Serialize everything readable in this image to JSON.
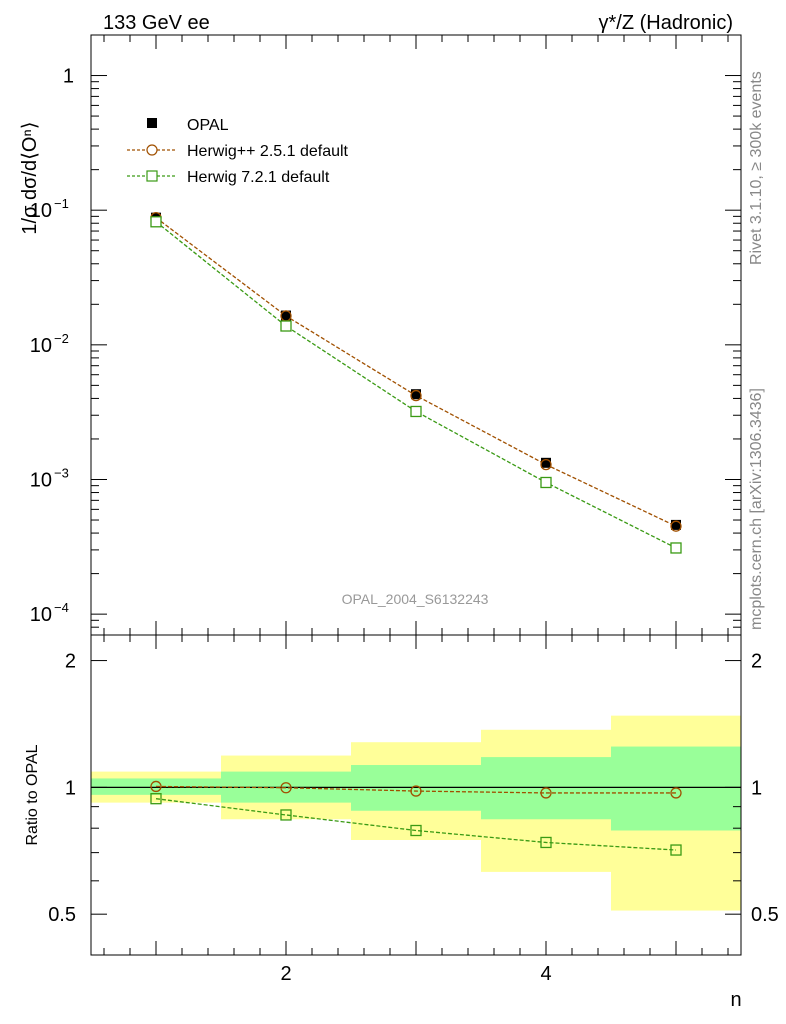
{
  "header": {
    "left_title": "133 GeV ee",
    "right_title": "γ*/Z (Hadronic)"
  },
  "side_labels": {
    "rivet": "Rivet 3.1.10, ≥ 300k events",
    "mcplots": "mcplots.cern.ch [arXiv:1306.3436]"
  },
  "watermark": "OPAL_2004_S6132243",
  "colors": {
    "data": "#000000",
    "herwigpp": "#a05000",
    "herwig7": "#3a9a14",
    "band_outer": "#ffff99",
    "band_inner": "#99ff99"
  },
  "chart_data": [
    {
      "type": "scatter",
      "ylabel": "1/σ dσ/d⟨Oⁿ⟩",
      "yscale": "log",
      "xlim": [
        0.5,
        5.5
      ],
      "ylim": [
        7e-05,
        2
      ],
      "ytick_labels": [
        {
          "value": 1,
          "mant": "1",
          "exp": ""
        },
        {
          "value": 0.1,
          "mant": "10",
          "exp": "−1"
        },
        {
          "value": 0.01,
          "mant": "10",
          "exp": "−2"
        },
        {
          "value": 0.001,
          "mant": "10",
          "exp": "−3"
        },
        {
          "value": 0.0001,
          "mant": "10",
          "exp": "−4"
        }
      ],
      "legend_position": "top-left",
      "x": [
        1,
        2,
        3,
        4,
        5
      ],
      "series": [
        {
          "name": "OPAL",
          "key": "data",
          "marker": "filled-square",
          "values": [
            0.088,
            0.0165,
            0.0043,
            0.00133,
            0.00046
          ]
        },
        {
          "name": "Herwig++ 2.5.1 default",
          "key": "herwigpp",
          "marker": "open-circle",
          "values": [
            0.088,
            0.0164,
            0.0042,
            0.00129,
            0.00045
          ]
        },
        {
          "name": "Herwig 7.2.1 default",
          "key": "herwig7",
          "marker": "open-square",
          "values": [
            0.082,
            0.0138,
            0.0032,
            0.00095,
            0.00031
          ]
        }
      ]
    },
    {
      "type": "line",
      "ylabel": "Ratio to OPAL",
      "xlabel": "n",
      "yscale": "log",
      "xlim": [
        0.5,
        5.5
      ],
      "ylim": [
        0.4,
        2.3
      ],
      "xtick_labels": [
        2,
        4
      ],
      "ytick_labels": [
        0.5,
        1,
        2
      ],
      "bands": {
        "bin_edges": [
          0.5,
          1.5,
          2.5,
          3.5,
          4.5,
          5.5
        ],
        "inner": [
          [
            0.96,
            1.05
          ],
          [
            0.92,
            1.09
          ],
          [
            0.88,
            1.13
          ],
          [
            0.84,
            1.18
          ],
          [
            0.79,
            1.25
          ]
        ],
        "outer": [
          [
            0.92,
            1.09
          ],
          [
            0.84,
            1.19
          ],
          [
            0.75,
            1.28
          ],
          [
            0.63,
            1.37
          ],
          [
            0.51,
            1.48
          ]
        ]
      },
      "x": [
        1,
        2,
        3,
        4,
        5
      ],
      "series": [
        {
          "name": "Herwig++ 2.5.1 default",
          "key": "herwigpp",
          "marker": "open-circle",
          "values": [
            1.005,
            0.998,
            0.98,
            0.97,
            0.97
          ]
        },
        {
          "name": "Herwig 7.2.1 default",
          "key": "herwig7",
          "marker": "open-square",
          "values": [
            0.94,
            0.86,
            0.79,
            0.74,
            0.71
          ]
        }
      ]
    }
  ]
}
